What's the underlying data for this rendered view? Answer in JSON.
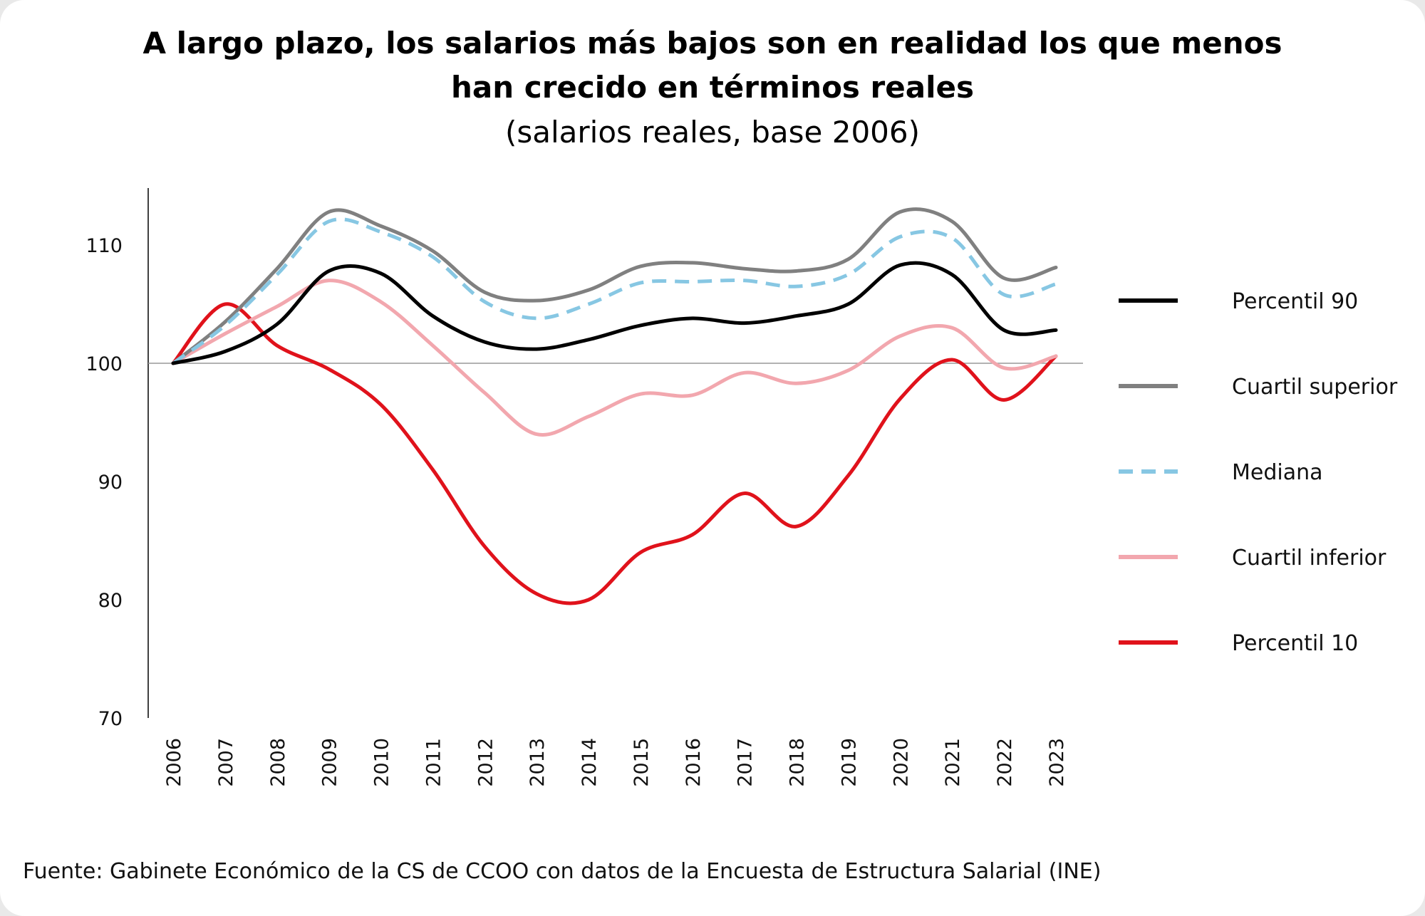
{
  "colors": {
    "background": "#ffffff",
    "axis": "#000000",
    "baseline": "#999999"
  },
  "chart_data": {
    "type": "line",
    "title": "A largo plazo, los salarios más bajos son en realidad los que menos han crecido en términos reales",
    "title_lines": [
      "A largo plazo, los salarios más bajos son en realidad los que menos",
      "han crecido en términos reales"
    ],
    "subtitle": "(salarios reales, base 2006)",
    "xlabel": "",
    "ylabel": "",
    "x": [
      "2006",
      "2007",
      "2008",
      "2009",
      "2010",
      "2011",
      "2012",
      "2013",
      "2014",
      "2015",
      "2016",
      "2017",
      "2018",
      "2019",
      "2020",
      "2021",
      "2022",
      "2023"
    ],
    "ylim": [
      70,
      115
    ],
    "yticks": [
      70,
      80,
      90,
      100,
      110
    ],
    "reference_line": 100,
    "grid": false,
    "legend_position": "right",
    "series": [
      {
        "name": "Percentil 90",
        "color": "#000000",
        "style": "solid",
        "values": [
          100,
          101,
          103.3,
          107.8,
          107.6,
          104.0,
          101.8,
          101.2,
          102.0,
          103.2,
          103.8,
          103.4,
          104.0,
          105.0,
          108.3,
          107.5,
          102.8,
          102.8
        ]
      },
      {
        "name": "Cuartil superior",
        "color": "#808080",
        "style": "solid",
        "values": [
          100,
          103.5,
          108.0,
          112.8,
          111.6,
          109.5,
          106.0,
          105.3,
          106.2,
          108.2,
          108.5,
          108.0,
          107.8,
          108.8,
          112.8,
          112.0,
          107.2,
          108.1
        ]
      },
      {
        "name": "Mediana",
        "color": "#87c7e3",
        "style": "dashed",
        "values": [
          100,
          103.2,
          107.5,
          112.0,
          111.1,
          109.0,
          105.2,
          103.8,
          105.0,
          106.8,
          106.9,
          107.0,
          106.5,
          107.5,
          110.7,
          110.6,
          105.8,
          106.7
        ]
      },
      {
        "name": "Cuartil inferior",
        "color": "#f2a7ae",
        "style": "solid",
        "values": [
          100,
          102.5,
          104.8,
          107.0,
          105.2,
          101.5,
          97.5,
          94.0,
          95.5,
          97.4,
          97.3,
          99.2,
          98.3,
          99.4,
          102.3,
          103.0,
          99.6,
          100.6
        ]
      },
      {
        "name": "Percentil 10",
        "color": "#e0121b",
        "style": "solid",
        "values": [
          100,
          105.0,
          101.5,
          99.5,
          96.5,
          91.0,
          84.5,
          80.5,
          80.0,
          84.0,
          85.5,
          89.0,
          86.2,
          90.5,
          97.0,
          100.3,
          96.9,
          100.6
        ]
      }
    ]
  },
  "source": "Fuente: Gabinete Económico de la CS de CCOO con datos de la Encuesta de Estructura Salarial (INE)"
}
